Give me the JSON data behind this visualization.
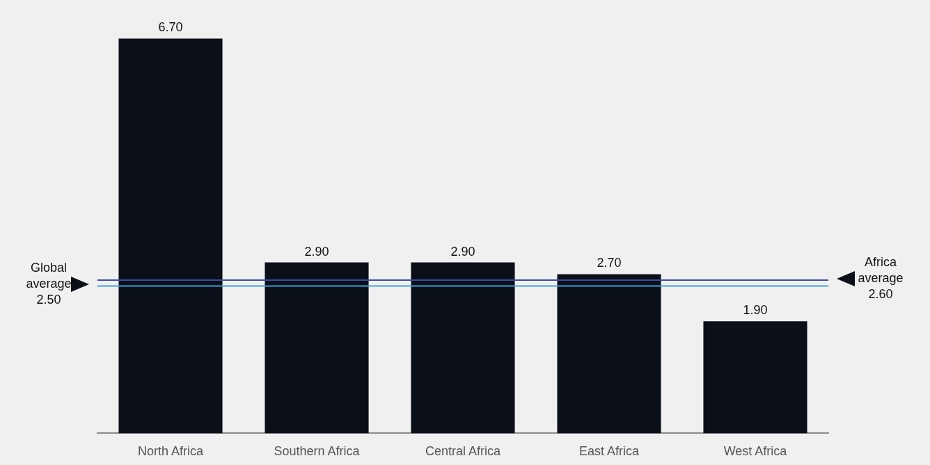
{
  "chart_data": {
    "type": "bar",
    "categories": [
      "North Africa",
      "Southern Africa",
      "Central Africa",
      "East Africa",
      "West Africa"
    ],
    "values": [
      6.7,
      2.9,
      2.9,
      2.7,
      1.9
    ],
    "color": "#0a0f18",
    "value_labels": [
      "6.70",
      "2.90",
      "2.90",
      "2.70",
      "1.90"
    ],
    "ref_lines": [
      {
        "axis": "y",
        "value": 2.5,
        "label": "Global average 2.50",
        "color": "#3fa0dc"
      },
      {
        "axis": "y",
        "value": 2.6,
        "label": "Africa average 2.60",
        "color": "#3a4c9c"
      }
    ]
  }
}
